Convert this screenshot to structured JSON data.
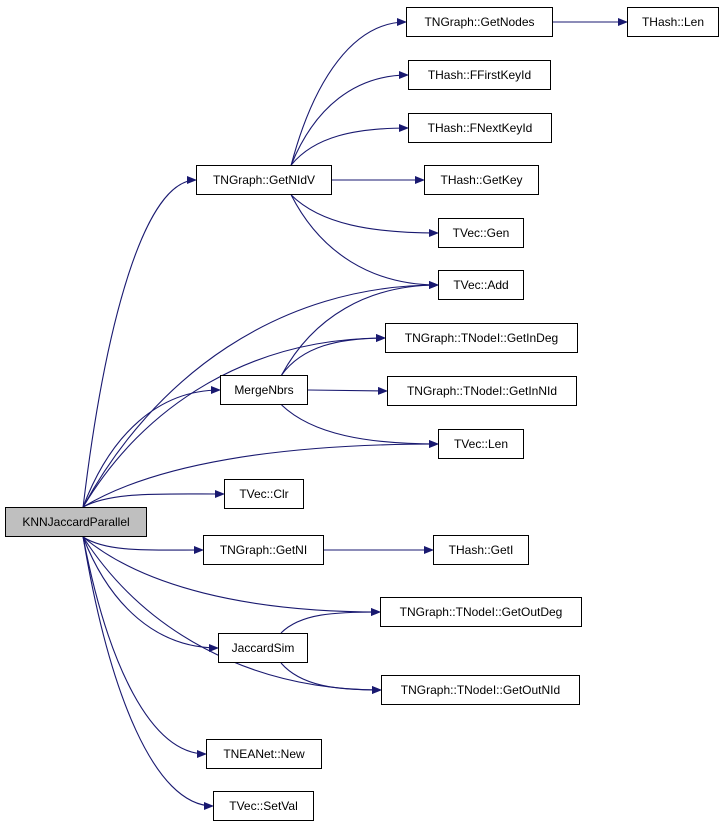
{
  "colors": {
    "edge": "#191970",
    "root_fill": "#bfbfbf",
    "node_fill": "#ffffff",
    "border": "#000000"
  },
  "nodes": {
    "root": "KNNJaccardParallel",
    "getnidv": "TNGraph::GetNIdV",
    "getnodes": "TNGraph::GetNodes",
    "hashlen": "THash::Len",
    "ffirst": "THash::FFirstKeyId",
    "fnext": "THash::FNextKeyId",
    "getkey": "THash::GetKey",
    "gen": "TVec::Gen",
    "add": "TVec::Add",
    "indeg": "TNGraph::TNodeI::GetInDeg",
    "mergenbrs": "MergeNbrs",
    "innid": "TNGraph::TNodeI::GetInNId",
    "veclen": "TVec::Len",
    "clr": "TVec::Clr",
    "getni": "TNGraph::GetNI",
    "geti": "THash::GetI",
    "outdeg": "TNGraph::TNodeI::GetOutDeg",
    "jaccard": "JaccardSim",
    "outnid": "TNGraph::TNodeI::GetOutNId",
    "new": "TNEANet::New",
    "setval": "TVec::SetVal"
  },
  "edges": [
    [
      "root",
      "getnidv"
    ],
    [
      "root",
      "add"
    ],
    [
      "root",
      "indeg"
    ],
    [
      "root",
      "mergenbrs"
    ],
    [
      "root",
      "veclen"
    ],
    [
      "root",
      "clr"
    ],
    [
      "root",
      "getni"
    ],
    [
      "root",
      "outdeg"
    ],
    [
      "root",
      "jaccard"
    ],
    [
      "root",
      "outnid"
    ],
    [
      "root",
      "new"
    ],
    [
      "root",
      "setval"
    ],
    [
      "getnidv",
      "getnodes"
    ],
    [
      "getnidv",
      "ffirst"
    ],
    [
      "getnidv",
      "fnext"
    ],
    [
      "getnidv",
      "getkey"
    ],
    [
      "getnidv",
      "gen"
    ],
    [
      "getnidv",
      "add"
    ],
    [
      "getnodes",
      "hashlen"
    ],
    [
      "mergenbrs",
      "add"
    ],
    [
      "mergenbrs",
      "indeg"
    ],
    [
      "mergenbrs",
      "innid"
    ],
    [
      "mergenbrs",
      "veclen"
    ],
    [
      "getni",
      "geti"
    ],
    [
      "jaccard",
      "outdeg"
    ],
    [
      "jaccard",
      "outnid"
    ]
  ]
}
